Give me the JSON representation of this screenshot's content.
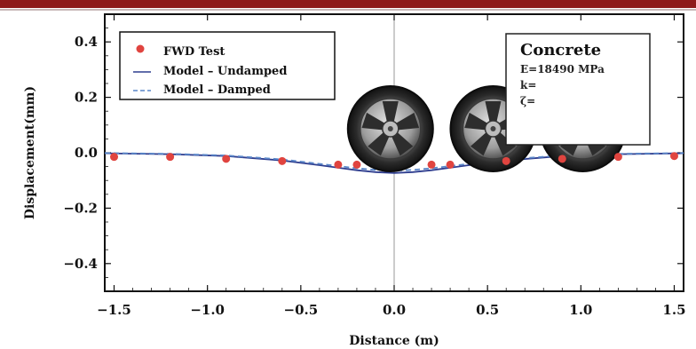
{
  "chart_data": {
    "type": "scatter",
    "title": "",
    "xlabel": "Distance (m)",
    "ylabel": "Displacement(mm)",
    "xlim": [
      -1.55,
      1.55
    ],
    "ylim": [
      -0.5,
      0.5
    ],
    "xticks": [
      -1.5,
      -1.0,
      -0.5,
      0.0,
      0.5,
      1.0,
      1.5
    ],
    "xtick_labels": [
      "−1.5",
      "−1.0",
      "−0.5",
      "0.0",
      "0.5",
      "1.0",
      "1.5"
    ],
    "yticks": [
      -0.4,
      -0.2,
      0.0,
      0.2,
      0.4
    ],
    "ytick_labels": [
      "−0.4",
      "−0.2",
      "0.0",
      "0.2",
      "0.4"
    ],
    "grid": false,
    "legend_position": "top-left",
    "series": [
      {
        "name": "FWD Test",
        "style": "markers",
        "color": "#e0443f",
        "x": [
          -1.5,
          -1.2,
          -0.9,
          -0.6,
          -0.3,
          -0.2,
          0.2,
          0.3,
          0.6,
          0.9,
          1.2,
          1.5
        ],
        "y": [
          -0.015,
          -0.015,
          -0.022,
          -0.03,
          -0.043,
          -0.043,
          -0.043,
          -0.043,
          -0.03,
          -0.022,
          -0.015,
          -0.012
        ]
      },
      {
        "name": "Model – Undamped",
        "style": "solid",
        "color": "#2f3e8f",
        "x": [
          -1.55,
          -1.2,
          -0.9,
          -0.6,
          -0.4,
          -0.2,
          -0.1,
          0.0,
          0.1,
          0.2,
          0.4,
          0.6,
          0.9,
          1.2,
          1.55
        ],
        "y": [
          -0.002,
          -0.005,
          -0.012,
          -0.028,
          -0.045,
          -0.063,
          -0.07,
          -0.073,
          -0.07,
          -0.063,
          -0.045,
          -0.028,
          -0.012,
          -0.005,
          -0.002
        ]
      },
      {
        "name": "Model – Damped",
        "style": "dashed",
        "color": "#5a86c8",
        "x": [
          -1.55,
          -1.2,
          -0.9,
          -0.6,
          -0.4,
          -0.2,
          -0.1,
          0.0,
          0.1,
          0.2,
          0.4,
          0.6,
          0.9,
          1.2,
          1.55
        ],
        "y": [
          -0.001,
          -0.004,
          -0.01,
          -0.024,
          -0.04,
          -0.056,
          -0.062,
          -0.065,
          -0.062,
          -0.056,
          -0.04,
          -0.024,
          -0.01,
          -0.004,
          -0.001
        ]
      }
    ],
    "info_box": {
      "title": "Concrete",
      "lines": [
        "E=18490 MPa",
        "k=",
        "ζ="
      ]
    },
    "wheels": [
      {
        "icon": "wheel-icon",
        "x": -0.02
      },
      {
        "icon": "wheel-icon",
        "x": 0.53
      },
      {
        "icon": "wheel-icon",
        "x": 1.01
      }
    ],
    "colors": {
      "banner": "#8e1a1a",
      "frame": "#111111",
      "center_line": "#9a9a9a"
    }
  }
}
